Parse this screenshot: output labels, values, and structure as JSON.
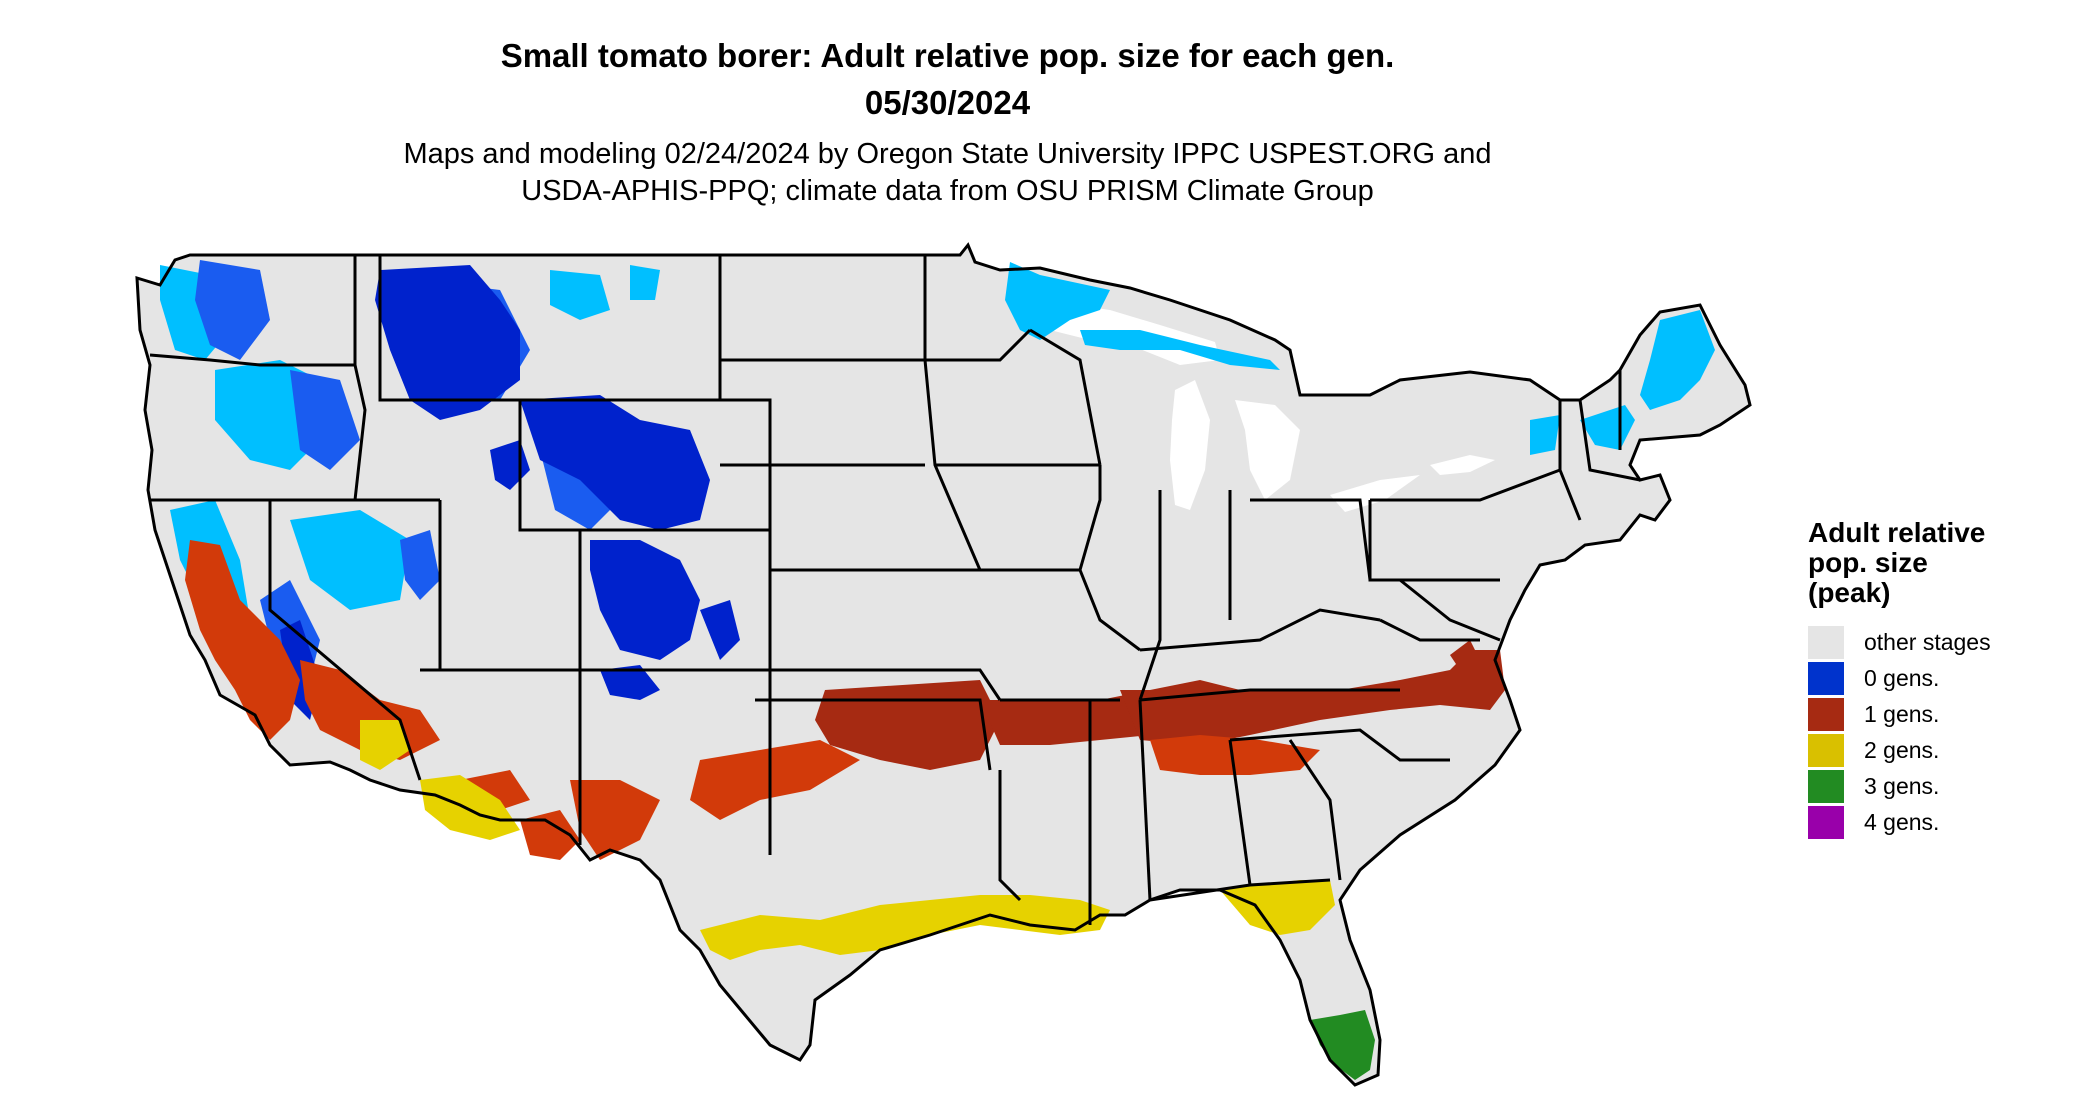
{
  "header": {
    "title_line1": "Small tomato borer: Adult relative pop. size for each gen.",
    "title_line2": "05/30/2024",
    "subtitle_line1": "Maps and modeling 02/24/2024 by Oregon State University IPPC USPEST.ORG and",
    "subtitle_line2": "USDA-APHIS-PPQ; climate data from OSU PRISM Climate Group"
  },
  "legend": {
    "title_line1": "Adult relative",
    "title_line2": "pop. size",
    "title_line3": "(peak)",
    "items": [
      {
        "label": "other stages",
        "color": "#e5e5e5"
      },
      {
        "label": "0 gens.",
        "color": "#0033cc"
      },
      {
        "label": "1 gens.",
        "color": "#a62a12"
      },
      {
        "label": "2 gens.",
        "color": "#d9c000"
      },
      {
        "label": "3 gens.",
        "color": "#228b22"
      },
      {
        "label": "4 gens.",
        "color": "#9900aa"
      }
    ]
  },
  "map_colors": {
    "land": "#e5e5e5",
    "light_blue": "#00bfff",
    "dark_blue": "#0022cc",
    "mid_blue": "#1a5cf0",
    "red": "#a62a12",
    "orange_red": "#d23a0a",
    "yellow": "#e6d200",
    "green": "#228b22",
    "border": "#000000"
  }
}
